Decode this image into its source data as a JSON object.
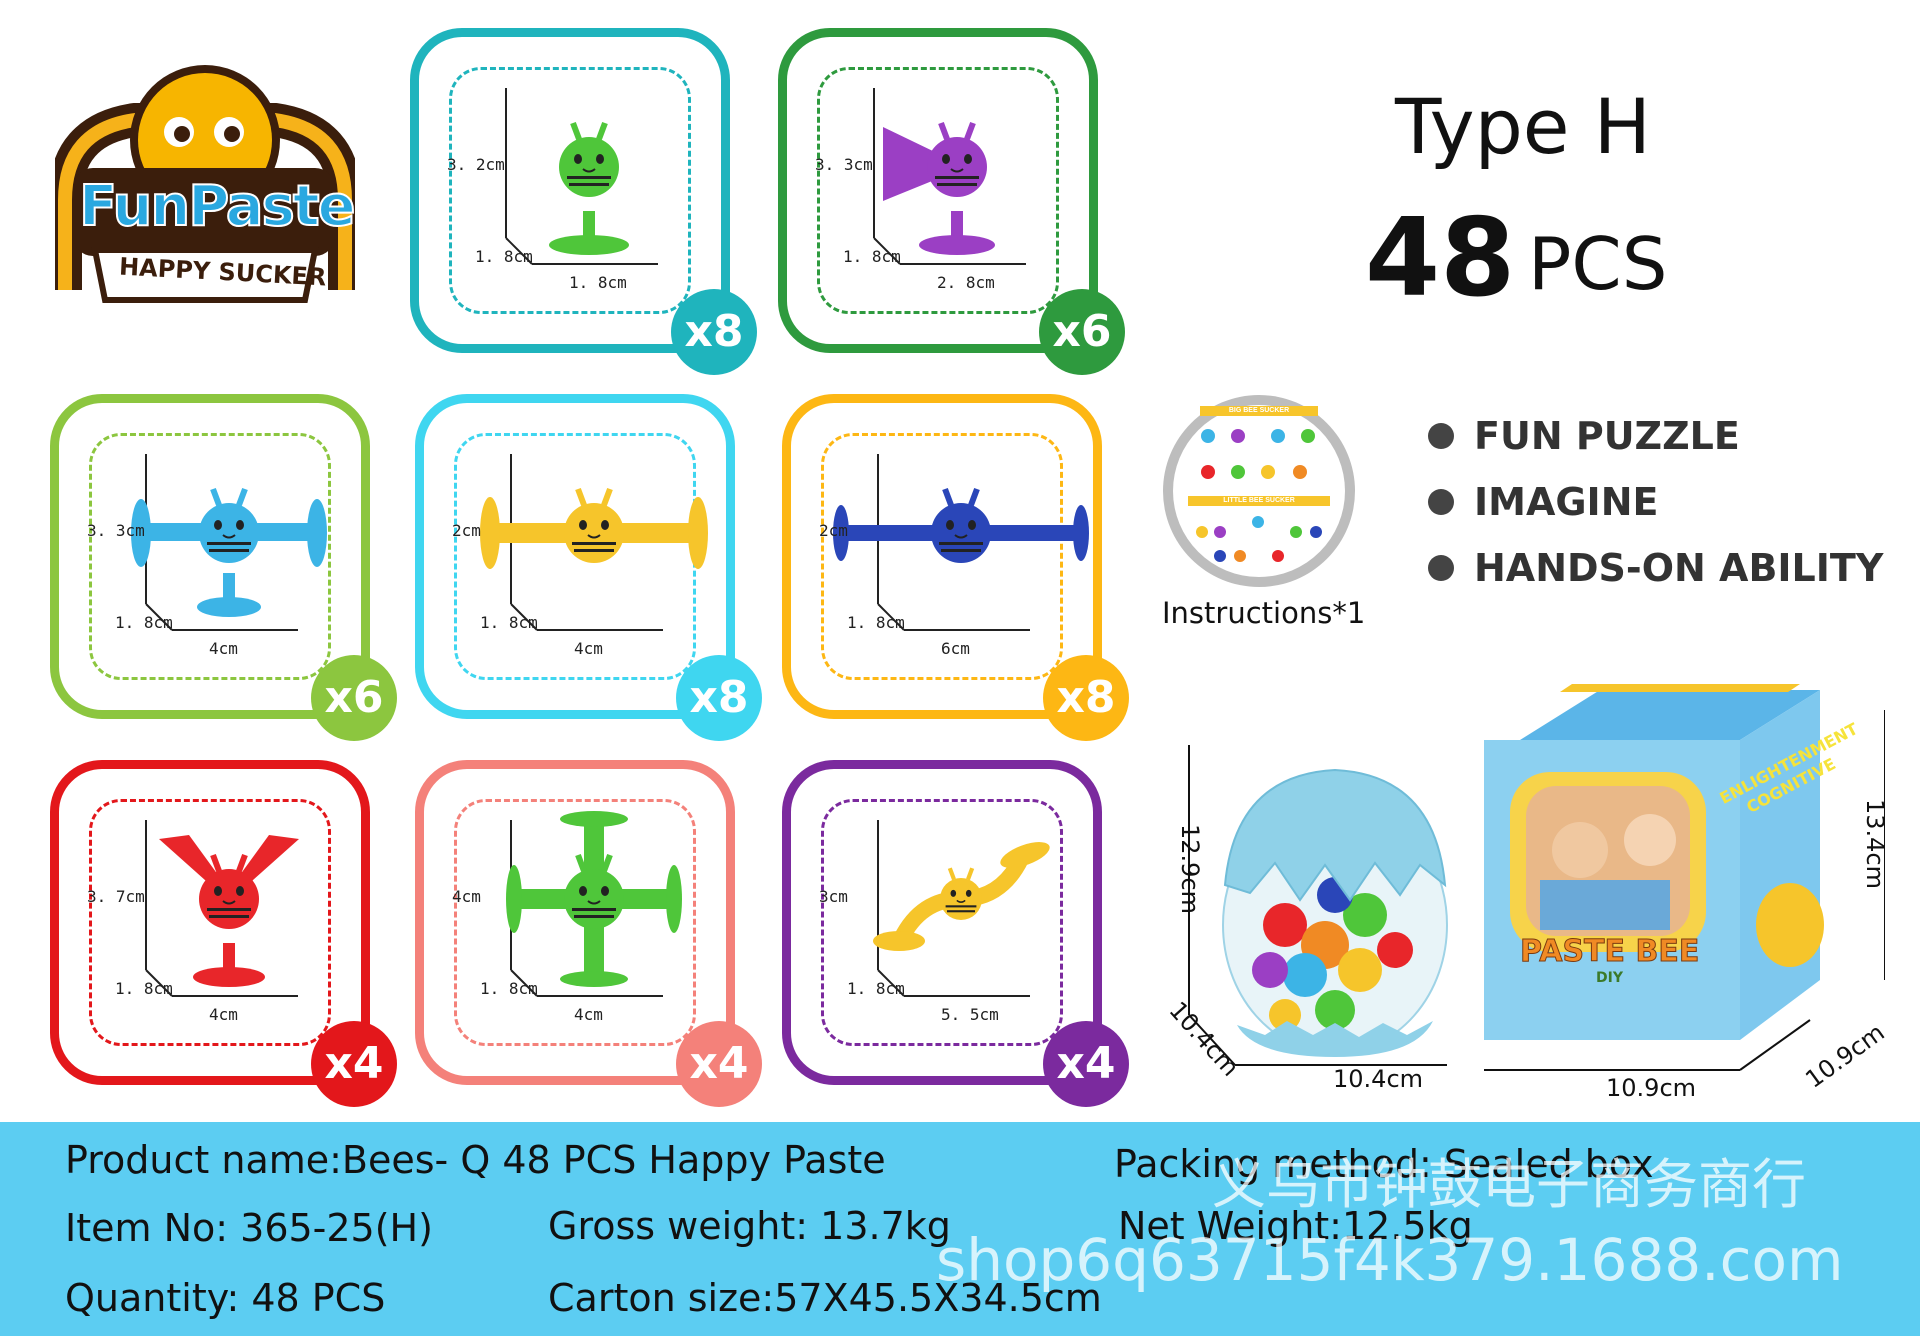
{
  "logo": {
    "brand": "FunPaste",
    "tagline": "HAPPY SUCKER"
  },
  "cards": [
    {
      "id": "c1",
      "color": "#1fb4bd",
      "count": "x8",
      "height": "3. 2cm",
      "depth": "1. 8cm",
      "width": "1. 8cm",
      "toy_color": "#4fc63a",
      "toy": "single"
    },
    {
      "id": "c2",
      "color": "#2e9a3e",
      "count": "x6",
      "height": "3. 3cm",
      "depth": "1. 8cm",
      "width": "2. 8cm",
      "toy_color": "#9b3fc4",
      "toy": "horn"
    },
    {
      "id": "c3",
      "color": "#8cc63f",
      "count": "x6",
      "height": "3. 3cm",
      "depth": "1. 8cm",
      "width": "4cm",
      "toy_color": "#3cb4e6",
      "toy": "tee"
    },
    {
      "id": "c4",
      "color": "#3fd6f0",
      "count": "x8",
      "height": "2cm",
      "depth": "1. 8cm",
      "width": "4cm",
      "toy_color": "#f6c52b",
      "toy": "bar"
    },
    {
      "id": "c5",
      "color": "#fdb714",
      "count": "x8",
      "height": "2cm",
      "depth": "1. 8cm",
      "width": "6cm",
      "toy_color": "#2a46b8",
      "toy": "longbar"
    },
    {
      "id": "c6",
      "color": "#e3171b",
      "count": "x4",
      "height": "3. 7cm",
      "depth": "1. 8cm",
      "width": "4cm",
      "toy_color": "#e8262a",
      "toy": "y"
    },
    {
      "id": "c7",
      "color": "#f4817a",
      "count": "x4",
      "height": "4cm",
      "depth": "1. 8cm",
      "width": "4cm",
      "toy_color": "#4fc63a",
      "toy": "cross"
    },
    {
      "id": "c8",
      "color": "#7b2a9e",
      "count": "x4",
      "height": "3cm",
      "depth": "1. 8cm",
      "width": "5. 5cm",
      "toy_color": "#f6c52b",
      "toy": "curve"
    }
  ],
  "type": {
    "title": "Type H",
    "count": "48",
    "unit": "PCS"
  },
  "features": [
    "FUN PUZZLE",
    "IMAGINE",
    "HANDS-ON ABILITY"
  ],
  "instructions": {
    "caption": "Instructions*1",
    "top_label": "BIG BEE SUCKER",
    "bottom_label": "LITTLE BEE SUCKER"
  },
  "egg": {
    "height": "12.9cm",
    "width": "10.4cm",
    "depth": "10.4cm"
  },
  "box": {
    "height": "13.4cm",
    "width": "10.9cm",
    "depth": "10.9cm",
    "side_text_1": "ENLIGHTENMENT",
    "side_text_2": "COGNITIVE",
    "front_text": "PASTE BEE",
    "front_sub": "DIY"
  },
  "info": {
    "product_name": "Product name:Bees- Q 48 PCS Happy Paste",
    "item_no": "Item No: 365-25(H)",
    "quantity": "Quantity: 48 PCS",
    "gross_weight": "Gross weight: 13.7kg",
    "carton_size": "Carton size:57X45.5X34.5cm",
    "packing": "Packing method: Sealed box",
    "net_weight": "Net Weight:12.5kg"
  },
  "watermark": {
    "line1": "义乌市钟鼓电子商务商行",
    "line2": "shop6q63715f4k379.1688.com"
  }
}
